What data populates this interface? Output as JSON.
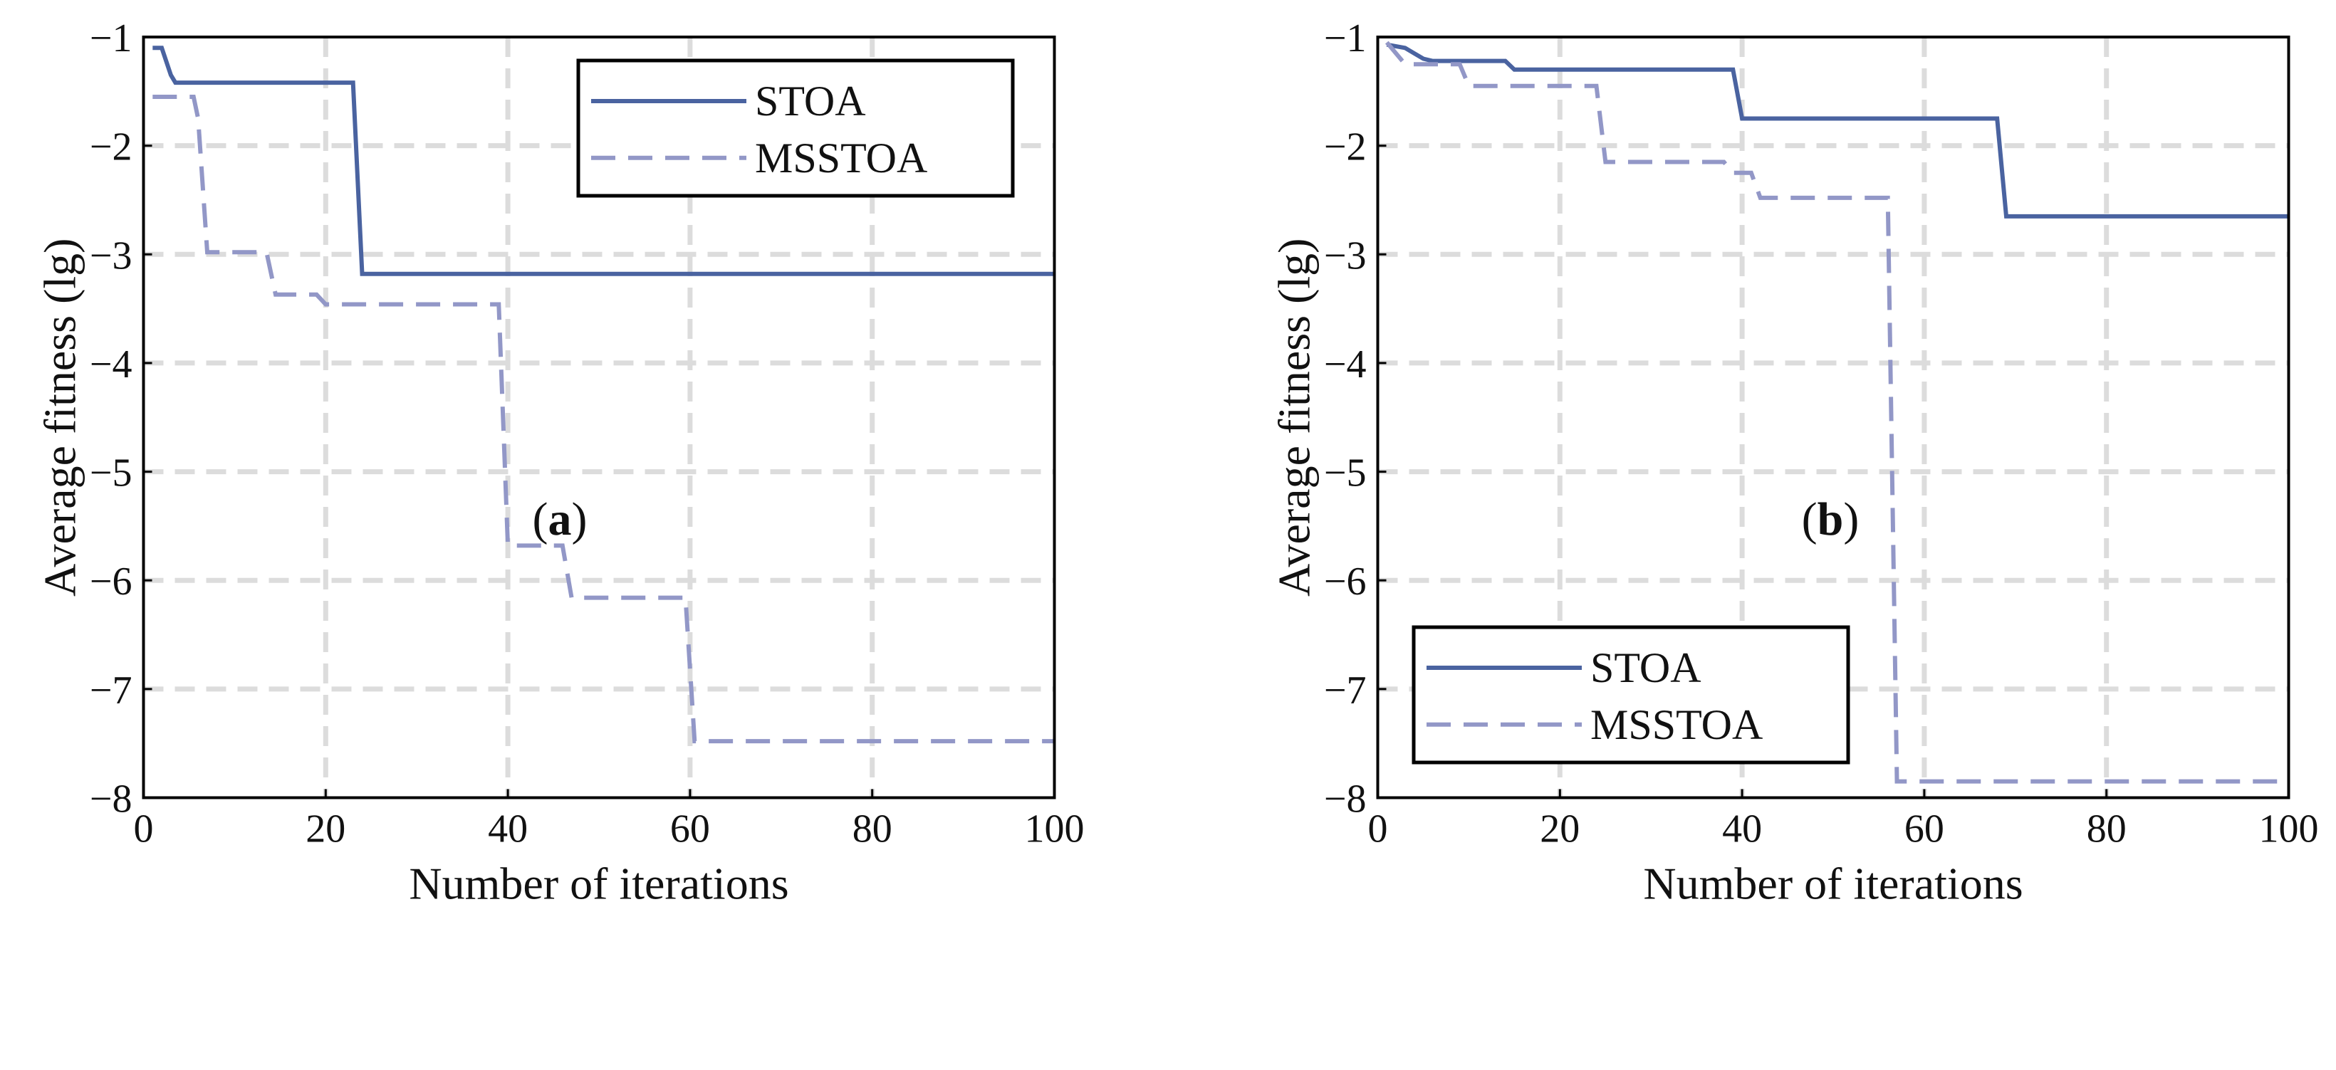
{
  "chart_data": [
    {
      "type": "line",
      "caption": "(a)",
      "caption_parts": [
        "(",
        "a",
        ")"
      ],
      "xlabel": "Number of iterations",
      "ylabel": "Average fitness (lg)",
      "xlim": [
        0,
        100
      ],
      "ylim": [
        -8,
        -1
      ],
      "xticks": [
        0,
        20,
        40,
        60,
        80,
        100
      ],
      "yticks": [
        -1,
        -2,
        -3,
        -4,
        -5,
        -6,
        -7,
        -8
      ],
      "xtick_labels": [
        "0",
        "20",
        "40",
        "60",
        "80",
        "100"
      ],
      "ytick_labels": [
        "−1",
        "−2",
        "−3",
        "−4",
        "−5",
        "−6",
        "−7",
        "−8"
      ],
      "grid": true,
      "legend_position": "top-right",
      "series": [
        {
          "name": "STOA",
          "color": "#4a63a0",
          "style": "solid",
          "x": [
            1,
            2,
            3,
            3.5,
            23,
            24,
            100
          ],
          "y": [
            -1.1,
            -1.1,
            -1.35,
            -1.42,
            -1.42,
            -3.18,
            -3.18
          ]
        },
        {
          "name": "MSSTOA",
          "color": "#9297c7",
          "style": "dashed",
          "x": [
            1,
            5.5,
            6,
            7,
            13.5,
            14.5,
            19,
            20,
            39,
            40,
            46,
            47,
            59.5,
            60.5,
            100
          ],
          "y": [
            -1.55,
            -1.55,
            -1.75,
            -2.98,
            -2.98,
            -3.37,
            -3.37,
            -3.46,
            -3.46,
            -5.68,
            -5.68,
            -6.16,
            -6.16,
            -7.48,
            -7.48
          ]
        }
      ]
    },
    {
      "type": "line",
      "caption": "(b)",
      "caption_parts": [
        "(",
        "b",
        ")"
      ],
      "xlabel": "Number of iterations",
      "ylabel": "Average fitness (lg)",
      "xlim": [
        0,
        100
      ],
      "ylim": [
        -8,
        -1
      ],
      "xticks": [
        0,
        20,
        40,
        60,
        80,
        100
      ],
      "yticks": [
        -1,
        -2,
        -3,
        -4,
        -5,
        -6,
        -7,
        -8
      ],
      "xtick_labels": [
        "0",
        "20",
        "40",
        "60",
        "80",
        "100"
      ],
      "ytick_labels": [
        "−1",
        "−2",
        "−3",
        "−4",
        "−5",
        "−6",
        "−7",
        "−8"
      ],
      "grid": true,
      "legend_position": "bottom-left",
      "series": [
        {
          "name": "STOA",
          "color": "#4a63a0",
          "style": "solid",
          "x": [
            1,
            3,
            4,
            5,
            6,
            14,
            15,
            39,
            40,
            68,
            69,
            100
          ],
          "y": [
            -1.07,
            -1.1,
            -1.15,
            -1.2,
            -1.22,
            -1.22,
            -1.3,
            -1.3,
            -1.75,
            -1.75,
            -2.65,
            -2.65
          ]
        },
        {
          "name": "MSSTOA",
          "color": "#9297c7",
          "style": "dashed",
          "x": [
            1,
            2,
            3,
            9,
            10,
            24,
            25,
            38,
            39,
            41,
            42,
            56,
            57,
            100
          ],
          "y": [
            -1.05,
            -1.15,
            -1.25,
            -1.25,
            -1.45,
            -1.45,
            -2.15,
            -2.15,
            -2.25,
            -2.25,
            -2.48,
            -2.48,
            -7.85,
            -7.85
          ]
        }
      ]
    }
  ]
}
